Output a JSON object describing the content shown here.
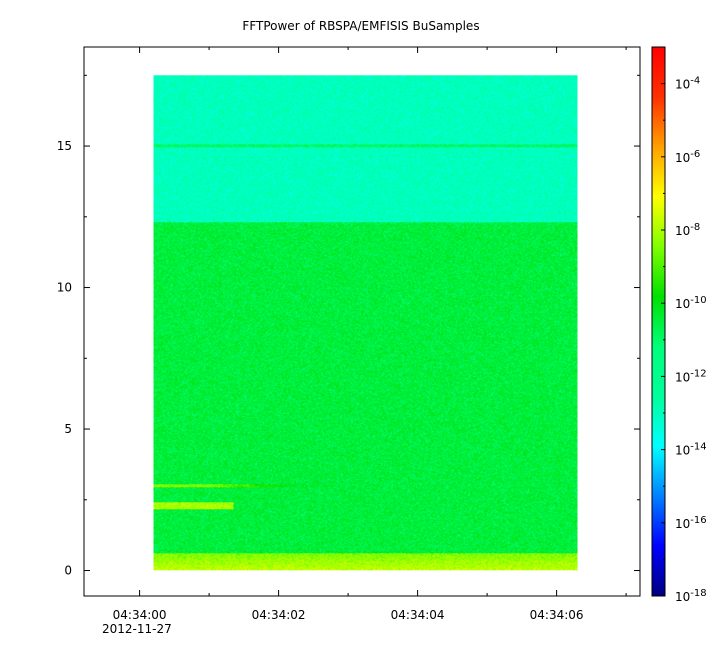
{
  "chart_data": {
    "type": "heatmap",
    "title": "FFTPower of RBSPA/EMFISIS  BuSamples",
    "xlabel": "",
    "ylabel": "",
    "x_tick_labels": [
      "04:34:00",
      "04:34:02",
      "04:34:04",
      "04:34:06"
    ],
    "x_tick_seconds": [
      0,
      2,
      4,
      6
    ],
    "x_minor_tick_seconds": [
      1,
      3,
      5,
      7
    ],
    "x_date_label": "2012-11-27",
    "xlim_seconds": [
      -0.8,
      7.2
    ],
    "ylim": [
      -0.9,
      18.5
    ],
    "y_ticks": [
      0,
      5,
      10,
      15
    ],
    "y_tick_labels": [
      "0",
      "5",
      "10",
      "15"
    ],
    "data_extent": {
      "x_seconds": [
        0.2,
        6.3
      ],
      "y": [
        0,
        17.5
      ]
    },
    "colorbar": {
      "scale": "log",
      "range": [
        1e-18,
        0.001
      ],
      "ticks": [
        0.0001,
        1e-06,
        1e-08,
        1e-10,
        1e-12,
        1e-14,
        1e-16,
        1e-18
      ],
      "tick_base": "10",
      "tick_exponents": [
        "-4",
        "-6",
        "-8",
        "-10",
        "-12",
        "-14",
        "-16",
        "-18"
      ],
      "colors": [
        "#00007f",
        "#0000ff",
        "#0080ff",
        "#00ffff",
        "#00ff9b",
        "#00ff7a",
        "#00e000",
        "#80ff00",
        "#ffff00",
        "#ffa000",
        "#ff3000",
        "#ff0000"
      ]
    },
    "features": [
      {
        "name": "upper band",
        "y_range": [
          12.3,
          17.5
        ],
        "log_power": -13
      },
      {
        "name": "main band",
        "y_range": [
          0.6,
          12.3
        ],
        "log_power": -10.5
      },
      {
        "name": "line at 15",
        "y": 15,
        "log_power": -11
      },
      {
        "name": "low-frequency strip",
        "y_range": [
          0,
          0.6
        ],
        "log_power": -8.5
      },
      {
        "name": "short burst",
        "y_range": [
          2.15,
          2.4
        ],
        "x_seconds": [
          0.2,
          1.35
        ],
        "log_power": -8
      },
      {
        "name": "thin streak",
        "y_range": [
          2.95,
          3.05
        ],
        "x_seconds": [
          0.2,
          2.4
        ],
        "log_power": -8.5
      }
    ]
  }
}
